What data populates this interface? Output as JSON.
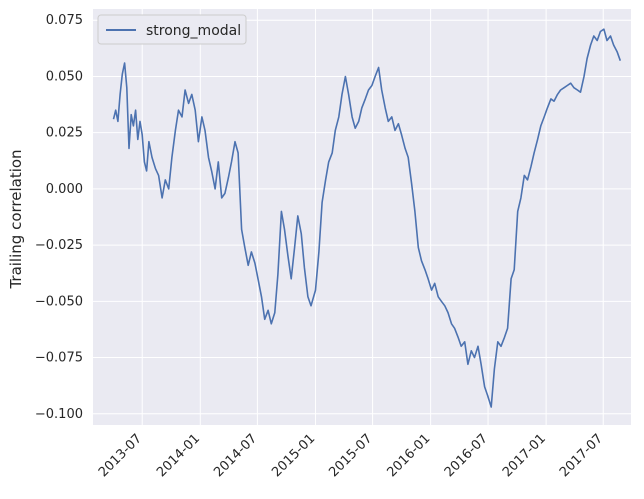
{
  "chart_data": {
    "type": "line",
    "title": "",
    "xlabel": "",
    "ylabel": "Trailing correlation",
    "xlim": [
      "2013-01-26",
      "2017-09-27"
    ],
    "ylim": [
      -0.105,
      0.08
    ],
    "x_ticks": [
      "2013-07",
      "2014-01",
      "2014-07",
      "2015-01",
      "2015-07",
      "2016-01",
      "2016-07",
      "2017-01",
      "2017-07"
    ],
    "y_ticks": [
      "0.075",
      "0.050",
      "0.025",
      "0.000",
      "−0.025",
      "−0.050",
      "−0.075",
      "−0.100"
    ],
    "y_tick_values": [
      0.075,
      0.05,
      0.025,
      0.0,
      -0.025,
      -0.05,
      -0.075,
      -0.1
    ],
    "grid": true,
    "legend_position": "top-left",
    "colors": {
      "background": "#eaeaf2",
      "grid": "#ffffff",
      "series": "#4c72b0"
    },
    "series": [
      {
        "name": "strong_modal",
        "color": "#4c72b0",
        "points": [
          [
            "2013-04-01",
            0.031
          ],
          [
            "2013-04-08",
            0.035
          ],
          [
            "2013-04-15",
            0.03
          ],
          [
            "2013-04-22",
            0.042
          ],
          [
            "2013-04-29",
            0.051
          ],
          [
            "2013-05-06",
            0.056
          ],
          [
            "2013-05-13",
            0.045
          ],
          [
            "2013-05-20",
            0.018
          ],
          [
            "2013-05-27",
            0.033
          ],
          [
            "2013-06-03",
            0.028
          ],
          [
            "2013-06-10",
            0.035
          ],
          [
            "2013-06-17",
            0.022
          ],
          [
            "2013-06-24",
            0.03
          ],
          [
            "2013-07-01",
            0.024
          ],
          [
            "2013-07-08",
            0.012
          ],
          [
            "2013-07-15",
            0.008
          ],
          [
            "2013-07-22",
            0.021
          ],
          [
            "2013-08-01",
            0.014
          ],
          [
            "2013-08-12",
            0.009
          ],
          [
            "2013-08-22",
            0.006
          ],
          [
            "2013-09-02",
            -0.004
          ],
          [
            "2013-09-12",
            0.004
          ],
          [
            "2013-09-23",
            0.0
          ],
          [
            "2013-10-03",
            0.014
          ],
          [
            "2013-10-14",
            0.026
          ],
          [
            "2013-10-24",
            0.035
          ],
          [
            "2013-11-04",
            0.032
          ],
          [
            "2013-11-14",
            0.044
          ],
          [
            "2013-11-25",
            0.038
          ],
          [
            "2013-12-05",
            0.042
          ],
          [
            "2013-12-16",
            0.035
          ],
          [
            "2013-12-26",
            0.021
          ],
          [
            "2014-01-06",
            0.032
          ],
          [
            "2014-01-16",
            0.026
          ],
          [
            "2014-01-27",
            0.014
          ],
          [
            "2014-02-06",
            0.008
          ],
          [
            "2014-02-17",
            0.0
          ],
          [
            "2014-02-27",
            0.012
          ],
          [
            "2014-03-10",
            -0.004
          ],
          [
            "2014-03-20",
            -0.002
          ],
          [
            "2014-03-31",
            0.005
          ],
          [
            "2014-04-10",
            0.012
          ],
          [
            "2014-04-21",
            0.021
          ],
          [
            "2014-05-01",
            0.016
          ],
          [
            "2014-05-12",
            -0.018
          ],
          [
            "2014-05-22",
            -0.026
          ],
          [
            "2014-06-02",
            -0.034
          ],
          [
            "2014-06-12",
            -0.028
          ],
          [
            "2014-06-23",
            -0.033
          ],
          [
            "2014-07-03",
            -0.04
          ],
          [
            "2014-07-14",
            -0.048
          ],
          [
            "2014-07-24",
            -0.058
          ],
          [
            "2014-08-04",
            -0.054
          ],
          [
            "2014-08-14",
            -0.06
          ],
          [
            "2014-08-25",
            -0.055
          ],
          [
            "2014-09-04",
            -0.038
          ],
          [
            "2014-09-15",
            -0.01
          ],
          [
            "2014-09-25",
            -0.018
          ],
          [
            "2014-10-06",
            -0.03
          ],
          [
            "2014-10-16",
            -0.04
          ],
          [
            "2014-10-27",
            -0.026
          ],
          [
            "2014-11-06",
            -0.012
          ],
          [
            "2014-11-17",
            -0.02
          ],
          [
            "2014-11-27",
            -0.035
          ],
          [
            "2014-12-08",
            -0.048
          ],
          [
            "2014-12-18",
            -0.052
          ],
          [
            "2015-01-01",
            -0.045
          ],
          [
            "2015-01-12",
            -0.028
          ],
          [
            "2015-01-22",
            -0.006
          ],
          [
            "2015-02-02",
            0.004
          ],
          [
            "2015-02-12",
            0.012
          ],
          [
            "2015-02-23",
            0.016
          ],
          [
            "2015-03-05",
            0.026
          ],
          [
            "2015-03-16",
            0.032
          ],
          [
            "2015-03-26",
            0.042
          ],
          [
            "2015-04-06",
            0.05
          ],
          [
            "2015-04-16",
            0.042
          ],
          [
            "2015-04-27",
            0.032
          ],
          [
            "2015-05-07",
            0.027
          ],
          [
            "2015-05-18",
            0.03
          ],
          [
            "2015-05-28",
            0.036
          ],
          [
            "2015-06-08",
            0.04
          ],
          [
            "2015-06-18",
            0.044
          ],
          [
            "2015-06-29",
            0.046
          ],
          [
            "2015-07-09",
            0.05
          ],
          [
            "2015-07-20",
            0.054
          ],
          [
            "2015-07-30",
            0.044
          ],
          [
            "2015-08-10",
            0.036
          ],
          [
            "2015-08-20",
            0.03
          ],
          [
            "2015-08-31",
            0.032
          ],
          [
            "2015-09-10",
            0.026
          ],
          [
            "2015-09-21",
            0.029
          ],
          [
            "2015-10-01",
            0.024
          ],
          [
            "2015-10-12",
            0.018
          ],
          [
            "2015-10-22",
            0.014
          ],
          [
            "2015-11-02",
            0.002
          ],
          [
            "2015-11-12",
            -0.01
          ],
          [
            "2015-11-23",
            -0.026
          ],
          [
            "2015-12-03",
            -0.032
          ],
          [
            "2015-12-14",
            -0.036
          ],
          [
            "2015-12-24",
            -0.04
          ],
          [
            "2016-01-04",
            -0.045
          ],
          [
            "2016-01-14",
            -0.042
          ],
          [
            "2016-01-25",
            -0.048
          ],
          [
            "2016-02-04",
            -0.05
          ],
          [
            "2016-02-15",
            -0.052
          ],
          [
            "2016-02-25",
            -0.055
          ],
          [
            "2016-03-07",
            -0.06
          ],
          [
            "2016-03-17",
            -0.062
          ],
          [
            "2016-03-28",
            -0.066
          ],
          [
            "2016-04-07",
            -0.07
          ],
          [
            "2016-04-18",
            -0.068
          ],
          [
            "2016-04-28",
            -0.078
          ],
          [
            "2016-05-09",
            -0.072
          ],
          [
            "2016-05-19",
            -0.075
          ],
          [
            "2016-05-30",
            -0.07
          ],
          [
            "2016-06-09",
            -0.078
          ],
          [
            "2016-06-20",
            -0.088
          ],
          [
            "2016-06-30",
            -0.092
          ],
          [
            "2016-07-11",
            -0.097
          ],
          [
            "2016-07-21",
            -0.08
          ],
          [
            "2016-08-01",
            -0.068
          ],
          [
            "2016-08-11",
            -0.07
          ],
          [
            "2016-08-22",
            -0.066
          ],
          [
            "2016-09-01",
            -0.062
          ],
          [
            "2016-09-12",
            -0.04
          ],
          [
            "2016-09-22",
            -0.036
          ],
          [
            "2016-10-03",
            -0.01
          ],
          [
            "2016-10-13",
            -0.004
          ],
          [
            "2016-10-24",
            0.006
          ],
          [
            "2016-11-03",
            0.004
          ],
          [
            "2016-11-14",
            0.01
          ],
          [
            "2016-11-24",
            0.016
          ],
          [
            "2016-12-05",
            0.022
          ],
          [
            "2016-12-15",
            0.028
          ],
          [
            "2016-12-26",
            0.032
          ],
          [
            "2017-01-05",
            0.036
          ],
          [
            "2017-01-16",
            0.04
          ],
          [
            "2017-01-26",
            0.039
          ],
          [
            "2017-02-06",
            0.042
          ],
          [
            "2017-02-16",
            0.044
          ],
          [
            "2017-02-27",
            0.045
          ],
          [
            "2017-03-09",
            0.046
          ],
          [
            "2017-03-20",
            0.047
          ],
          [
            "2017-03-30",
            0.045
          ],
          [
            "2017-04-10",
            0.044
          ],
          [
            "2017-04-20",
            0.043
          ],
          [
            "2017-05-01",
            0.05
          ],
          [
            "2017-05-11",
            0.058
          ],
          [
            "2017-05-22",
            0.064
          ],
          [
            "2017-06-01",
            0.068
          ],
          [
            "2017-06-12",
            0.066
          ],
          [
            "2017-06-22",
            0.07
          ],
          [
            "2017-07-03",
            0.071
          ],
          [
            "2017-07-13",
            0.066
          ],
          [
            "2017-07-24",
            0.068
          ],
          [
            "2017-08-03",
            0.064
          ],
          [
            "2017-08-14",
            0.061
          ],
          [
            "2017-08-24",
            0.057
          ]
        ]
      }
    ]
  }
}
